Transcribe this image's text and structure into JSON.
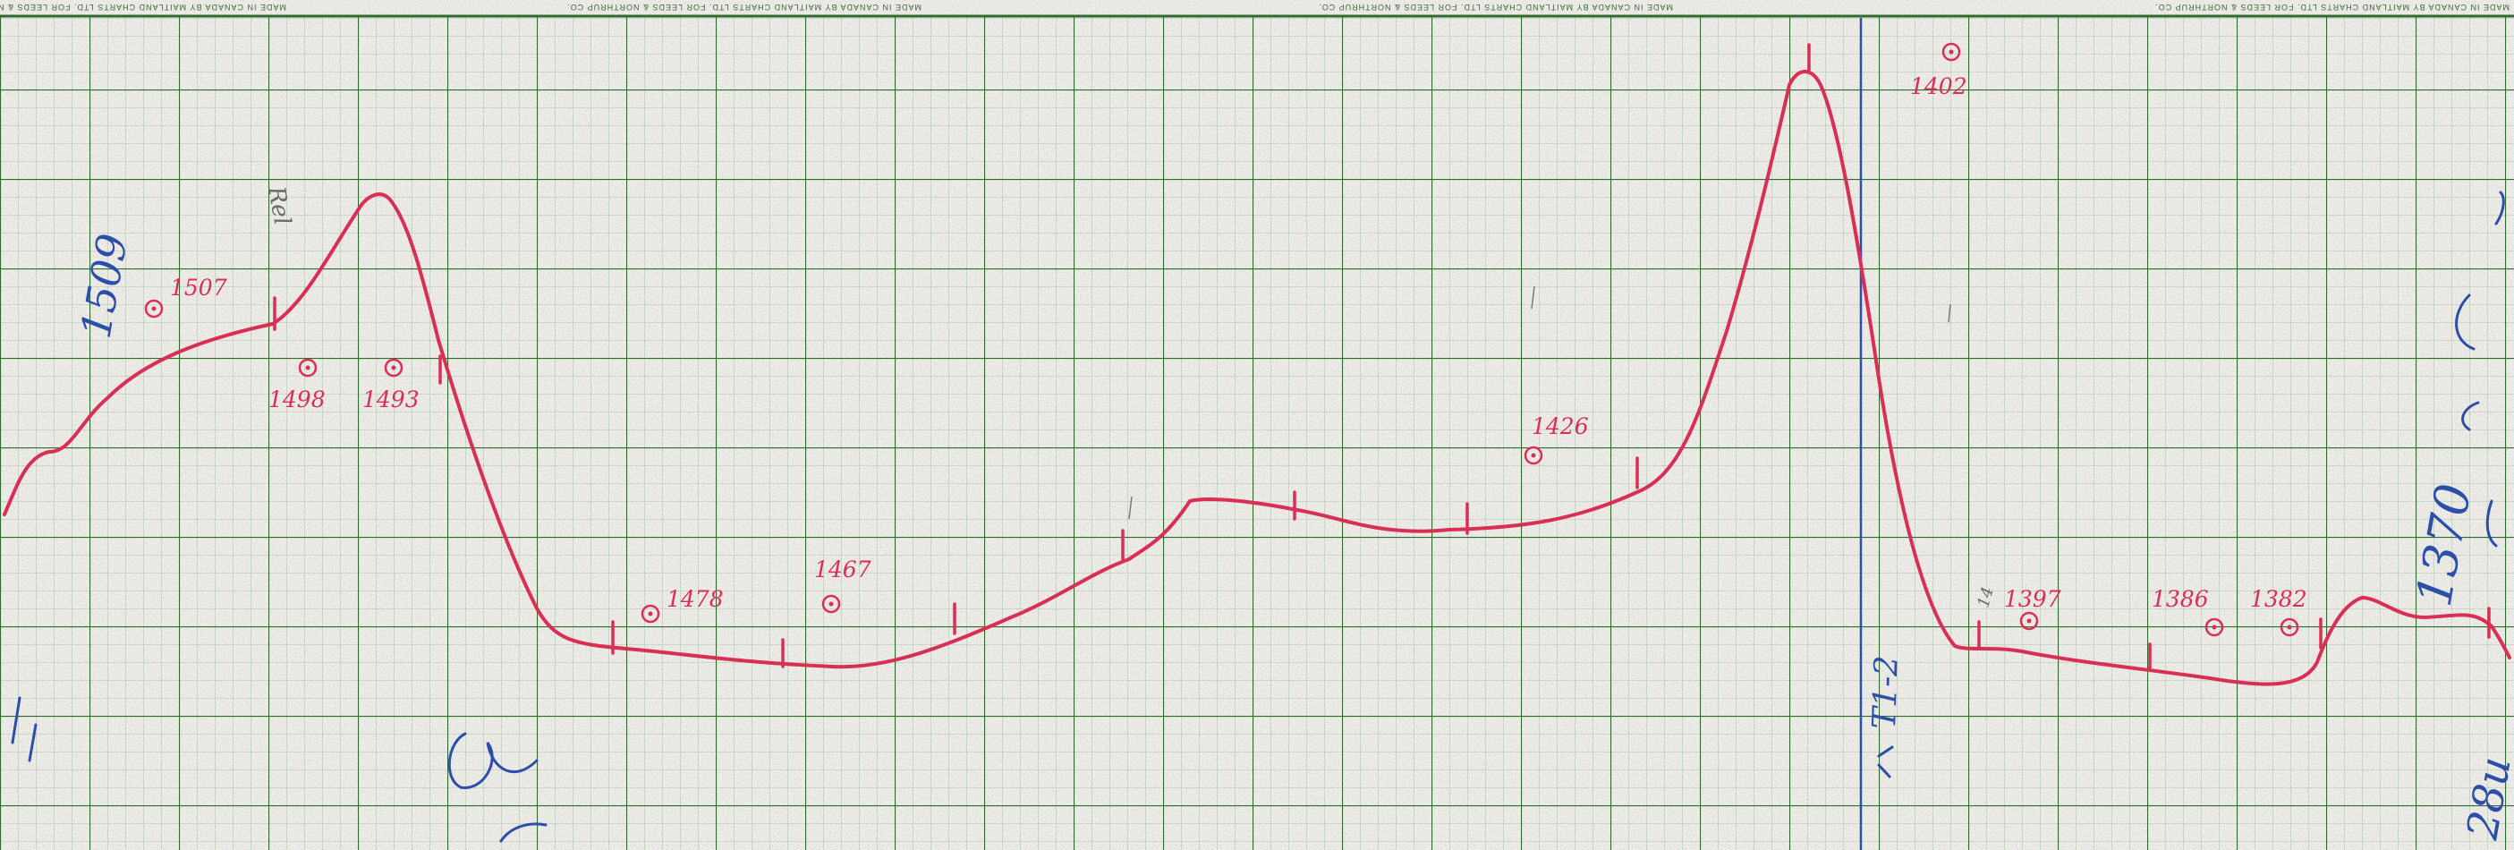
{
  "chart_paper": {
    "printed_header": [
      "MADE IN CANADA BY MAITLAND CHARTS LTD. FOR LEEDS & NORTHRUP CO.",
      "MADE IN CANADA BY MAITLAND CHARTS LTD. FOR LEEDS & NORTHRUP CO.",
      "MADE IN CANADA BY MAITLAND CHARTS LTD. FOR LEEDS & NORTHRUP CO.",
      "MADE IN CANADA BY MAITLAND CHARTS LTD. FOR LEEDS & NORTHRUP CO."
    ],
    "grid_color": "#2f6b2f",
    "trace_color": "#d92f55",
    "ink_color": "#2d4ea8"
  },
  "red_annotations": [
    "1507",
    "1498",
    "1493",
    "1478",
    "1467",
    "1426",
    "1402",
    "1397",
    "1386",
    "1382"
  ],
  "blue_annotations": [
    "1509",
    "1370",
    "T1-2",
    "28u"
  ],
  "gray_annotations": [
    "Rel",
    "14"
  ]
}
